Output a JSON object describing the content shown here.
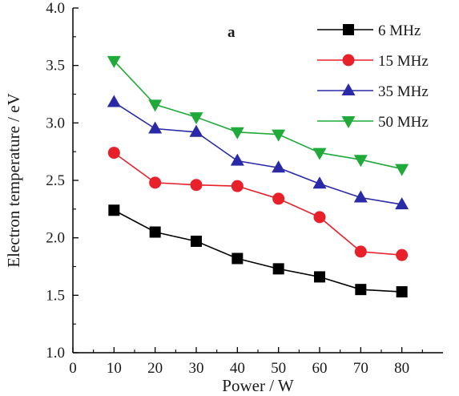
{
  "chart_data": {
    "type": "line",
    "panel_label": "a",
    "xlabel": "Power / W",
    "ylabel": "Electron temperature / eV",
    "xlim": [
      0,
      90
    ],
    "ylim": [
      1.0,
      4.0
    ],
    "x_ticks": [
      0,
      10,
      20,
      30,
      40,
      50,
      60,
      70,
      80
    ],
    "y_ticks": [
      1.0,
      1.5,
      2.0,
      2.5,
      3.0,
      3.5,
      4.0
    ],
    "x": [
      10,
      20,
      30,
      40,
      50,
      60,
      70,
      80
    ],
    "grid": false,
    "legend_position": "top-right",
    "series": [
      {
        "name": "6 MHz",
        "color": "#000000",
        "marker": "square",
        "values": [
          2.24,
          2.05,
          1.97,
          1.82,
          1.73,
          1.66,
          1.55,
          1.53
        ]
      },
      {
        "name": "15 MHz",
        "color": "#e8202a",
        "marker": "circle",
        "values": [
          2.74,
          2.48,
          2.46,
          2.45,
          2.34,
          2.18,
          1.88,
          1.85
        ]
      },
      {
        "name": "35 MHz",
        "color": "#2a2aa8",
        "marker": "triangle-up",
        "values": [
          3.18,
          2.95,
          2.92,
          2.67,
          2.61,
          2.47,
          2.35,
          2.29
        ]
      },
      {
        "name": "50 MHz",
        "color": "#1faa3a",
        "marker": "triangle-down",
        "values": [
          3.54,
          3.16,
          3.05,
          2.92,
          2.9,
          2.74,
          2.68,
          2.6
        ]
      }
    ]
  }
}
